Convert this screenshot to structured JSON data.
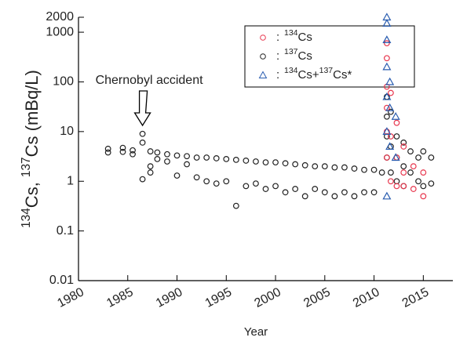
{
  "chart_data": {
    "type": "scatter",
    "xlabel": "Year",
    "ylabel": "134Cs, 137Cs (mBq/L)",
    "annotation": "Chernobyl accident",
    "annotation_x": 1986.5,
    "legend_separator": ":",
    "log_y": true,
    "xlim": [
      1980,
      2018
    ],
    "ylim": [
      0.01,
      2000
    ],
    "xticks": [
      1980,
      1985,
      1990,
      1995,
      2000,
      2005,
      2010,
      2015
    ],
    "yticks": [
      0.01,
      0.1,
      1,
      10,
      100,
      1000,
      2000
    ],
    "legend": "upper right",
    "series": [
      {
        "name": "134Cs",
        "color": "#e8384f",
        "marker": "circle",
        "x": [
          2011.3,
          2011.3,
          2011.3,
          2011.3,
          2011.3,
          2011.3,
          2011.7,
          2011.7,
          2011.7,
          2012.3,
          2012.3,
          2012.3,
          2013,
          2013,
          2013,
          2014,
          2014,
          2015,
          2015
        ],
        "values": [
          600,
          300,
          80,
          30,
          10,
          3,
          60,
          8,
          1,
          15,
          3,
          0.8,
          5,
          1.5,
          0.8,
          2,
          0.7,
          1.5,
          0.5
        ]
      },
      {
        "name": "137Cs",
        "color": "#222222",
        "marker": "circle",
        "x": [
          1983,
          1983,
          1984.5,
          1984.5,
          1985.5,
          1985.5,
          1986.5,
          1986.5,
          1986.5,
          1987.3,
          1987.3,
          1987.3,
          1988,
          1988,
          1989,
          1989,
          1990,
          1990,
          1991,
          1991,
          1992,
          1992,
          1993,
          1993,
          1994,
          1994,
          1995,
          1995,
          1996,
          1996,
          1997,
          1997,
          1998,
          1998,
          1999,
          1999,
          2000,
          2000,
          2001,
          2001,
          2002,
          2002,
          2003,
          2003,
          2004,
          2004,
          2005,
          2005,
          2006,
          2006,
          2007,
          2007,
          2008,
          2008,
          2009,
          2009,
          2010,
          2010,
          2010.8,
          2011.3,
          2011.3,
          2011.3,
          2011.3,
          2011.7,
          2011.7,
          2011.7,
          2012.3,
          2012.3,
          2012.3,
          2013,
          2013,
          2013,
          2013.7,
          2013.7,
          2014.5,
          2014.5,
          2015,
          2015,
          2015.8,
          2015.8
        ],
        "values": [
          4.5,
          3.8,
          4.7,
          3.9,
          4.2,
          3.5,
          9,
          6,
          1.1,
          4,
          2.0,
          1.5,
          3.8,
          2.8,
          3.5,
          2.5,
          3.3,
          1.3,
          3.2,
          2.2,
          3.0,
          1.2,
          3.0,
          1.0,
          2.9,
          0.9,
          2.8,
          1.0,
          2.7,
          0.32,
          2.6,
          0.8,
          2.5,
          0.9,
          2.4,
          0.7,
          2.4,
          0.8,
          2.3,
          0.6,
          2.2,
          0.7,
          2.1,
          0.5,
          2.0,
          0.7,
          2.0,
          0.6,
          1.9,
          0.5,
          1.9,
          0.6,
          1.8,
          0.5,
          1.7,
          0.6,
          1.7,
          0.6,
          1.5,
          50,
          20,
          8,
          3,
          25,
          5,
          1.5,
          8,
          3,
          1,
          6,
          2,
          0.8,
          4,
          1.5,
          3,
          1,
          4,
          0.8,
          3,
          0.9
        ]
      },
      {
        "name": "134Cs+137Cs*",
        "color": "#2a5db0",
        "marker": "triangle",
        "x": [
          2011.3,
          2011.3,
          2011.3,
          2011.3,
          2011.3,
          2011.3,
          2011.3,
          2011.6,
          2011.6,
          2011.6,
          2012.2,
          2012.2
        ],
        "values": [
          2000,
          1500,
          700,
          200,
          50,
          10,
          0.5,
          100,
          30,
          5,
          20,
          3
        ]
      }
    ]
  }
}
